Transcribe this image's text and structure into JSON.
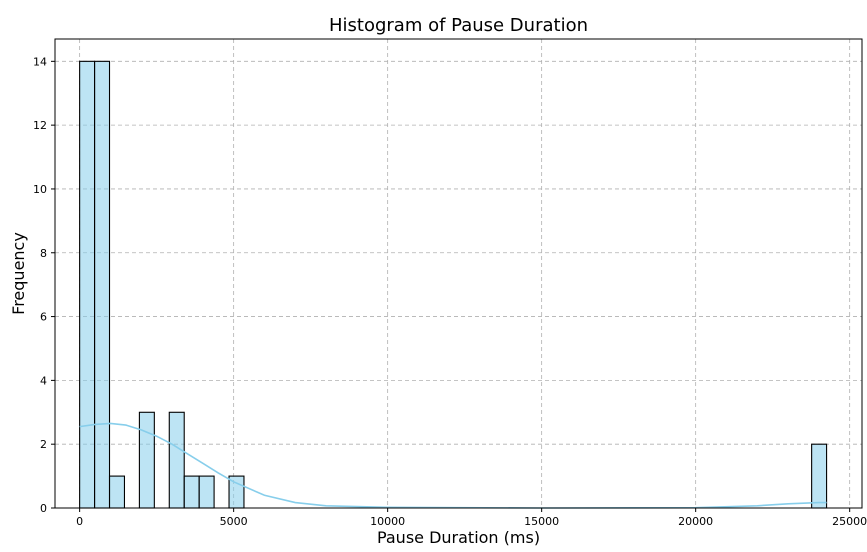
{
  "chart_data": {
    "type": "bar",
    "title": "Histogram of Pause Duration",
    "xlabel": "Pause Duration (ms)",
    "ylabel": "Frequency",
    "xlim": [
      -800,
      25400
    ],
    "ylim": [
      0,
      14.7
    ],
    "xticks": [
      0,
      5000,
      10000,
      15000,
      20000,
      25000
    ],
    "yticks": [
      0,
      2,
      4,
      6,
      8,
      10,
      12,
      14
    ],
    "grid": true,
    "bin_width": 485,
    "bins": [
      {
        "start": 0,
        "count": 14
      },
      {
        "start": 485,
        "count": 14
      },
      {
        "start": 970,
        "count": 1
      },
      {
        "start": 1940,
        "count": 3
      },
      {
        "start": 2910,
        "count": 3
      },
      {
        "start": 3395,
        "count": 1
      },
      {
        "start": 3880,
        "count": 1
      },
      {
        "start": 4850,
        "count": 1
      },
      {
        "start": 23765,
        "count": 2
      }
    ],
    "kde": {
      "x": [
        0,
        500,
        1000,
        1500,
        2000,
        2500,
        3000,
        3500,
        4000,
        4500,
        5000,
        6000,
        7000,
        8000,
        10000,
        15000,
        20000,
        22000,
        23000,
        24000,
        24250
      ],
      "y": [
        2.55,
        2.62,
        2.65,
        2.6,
        2.45,
        2.25,
        2.0,
        1.7,
        1.4,
        1.1,
        0.82,
        0.4,
        0.17,
        0.07,
        0.02,
        0.0,
        0.01,
        0.07,
        0.13,
        0.17,
        0.17
      ]
    },
    "colors": {
      "bar_fill": "#87ceeb",
      "bar_edge": "#000000",
      "kde": "#87ceeb",
      "grid": "#b0b0b0"
    }
  }
}
